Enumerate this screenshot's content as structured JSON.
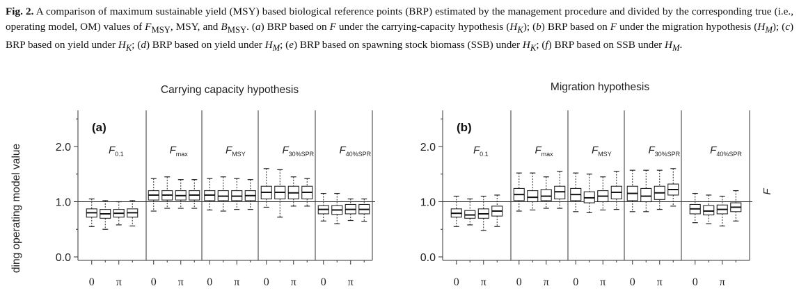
{
  "caption": {
    "label": "Fig. 2.",
    "html": "A comparison of maximum sustainable yield (MSY) based biological reference points (BRP) estimated by the management procedure and divided by the corresponding true (i.e., operating model, OM) values of <i>F</i><sub>MSY</sub>, MSY, and <i>B</i><sub>MSY</sub>. (<i>a</i>) BRP based on <i>F</i> under the carrying-capacity hypothesis (<i>H<sub>K</sub></i>); (<i>b</i>) BRP based on <i>F</i> under the migration hypothesis (<i>H<sub>M</sub></i>); (<i>c</i>) BRP based on yield under <i>H<sub>K</sub></i>; (<i>d</i>) BRP based on yield under <i>H<sub>M</sub></i>; (<i>e</i>) BRP based on spawning stock biomass (SSB) under <i>H<sub>K</sub></i>; (<i>f</i>) BRP based on SSB under <i>H<sub>M</sub></i>."
  },
  "y_axis_label": "ding operating model value",
  "right_label": "F",
  "chart_data": [
    {
      "type": "box",
      "title": "Carrying capacity hypothesis",
      "panel_label": "(a)",
      "ylim": [
        -0.05,
        2.55
      ],
      "yticks": [
        "0.0",
        "1.0",
        "2.0"
      ],
      "reference_line": 1.0,
      "groups": [
        {
          "label": "F",
          "sub": "0.1",
          "ticks": [
            "0",
            "π"
          ],
          "boxes": [
            [
              0.55,
              0.72,
              0.8,
              0.87,
              1.05
            ],
            [
              0.5,
              0.7,
              0.78,
              0.86,
              1.02
            ],
            [
              0.58,
              0.72,
              0.79,
              0.86,
              1.0
            ],
            [
              0.56,
              0.72,
              0.8,
              0.87,
              1.02
            ]
          ]
        },
        {
          "label": "F",
          "sub": "max",
          "ticks": [
            "0",
            "π"
          ],
          "boxes": [
            [
              0.83,
              1.03,
              1.12,
              1.2,
              1.42
            ],
            [
              0.88,
              1.03,
              1.12,
              1.2,
              1.45
            ],
            [
              0.88,
              1.03,
              1.11,
              1.2,
              1.4
            ],
            [
              0.88,
              1.03,
              1.12,
              1.2,
              1.4
            ]
          ]
        },
        {
          "label": "F",
          "sub": "MSY",
          "ticks": [
            "0",
            "π"
          ],
          "boxes": [
            [
              0.85,
              1.02,
              1.12,
              1.2,
              1.42
            ],
            [
              0.83,
              1.02,
              1.1,
              1.2,
              1.45
            ],
            [
              0.86,
              1.02,
              1.1,
              1.2,
              1.42
            ],
            [
              0.86,
              1.02,
              1.11,
              1.2,
              1.4
            ]
          ]
        },
        {
          "label": "F",
          "sub": "30%SPR",
          "ticks": [
            "0",
            "π"
          ],
          "boxes": [
            [
              0.9,
              1.05,
              1.17,
              1.28,
              1.6
            ],
            [
              0.72,
              1.05,
              1.17,
              1.28,
              1.58
            ],
            [
              0.92,
              1.05,
              1.16,
              1.28,
              1.45
            ],
            [
              0.92,
              1.05,
              1.17,
              1.28,
              1.42
            ]
          ]
        },
        {
          "label": "F",
          "sub": "40%SPR",
          "ticks": [
            "0",
            "π"
          ],
          "boxes": [
            [
              0.65,
              0.78,
              0.86,
              0.93,
              1.15
            ],
            [
              0.6,
              0.77,
              0.85,
              0.93,
              1.15
            ],
            [
              0.66,
              0.78,
              0.86,
              0.95,
              1.05
            ],
            [
              0.64,
              0.78,
              0.86,
              0.95,
              1.05
            ]
          ]
        }
      ]
    },
    {
      "type": "box",
      "title": "Migration hypothesis",
      "panel_label": "(b)",
      "ylim": [
        -0.05,
        2.55
      ],
      "yticks": [
        "0.0",
        "1.0",
        "2.0"
      ],
      "reference_line": 1.0,
      "groups": [
        {
          "label": "F",
          "sub": "0.1",
          "ticks": [
            "0",
            "π"
          ],
          "boxes": [
            [
              0.55,
              0.72,
              0.79,
              0.87,
              1.1
            ],
            [
              0.58,
              0.7,
              0.76,
              0.84,
              1.05
            ],
            [
              0.48,
              0.7,
              0.78,
              0.87,
              1.1
            ],
            [
              0.55,
              0.74,
              0.83,
              0.92,
              1.12
            ]
          ]
        },
        {
          "label": "F",
          "sub": "max",
          "ticks": [
            "0",
            "π"
          ],
          "boxes": [
            [
              0.83,
              1.02,
              1.13,
              1.24,
              1.52
            ],
            [
              0.85,
              1.0,
              1.08,
              1.2,
              1.52
            ],
            [
              0.88,
              1.02,
              1.1,
              1.22,
              1.45
            ],
            [
              0.88,
              1.05,
              1.18,
              1.28,
              1.55
            ]
          ]
        },
        {
          "label": "F",
          "sub": "MSY",
          "ticks": [
            "0",
            "π"
          ],
          "boxes": [
            [
              0.82,
              1.02,
              1.13,
              1.24,
              1.52
            ],
            [
              0.8,
              0.98,
              1.07,
              1.18,
              1.5
            ],
            [
              0.85,
              1.0,
              1.1,
              1.2,
              1.45
            ],
            [
              0.86,
              1.05,
              1.17,
              1.28,
              1.55
            ]
          ]
        },
        {
          "label": "F",
          "sub": "30%SPR",
          "ticks": [
            "0",
            "π"
          ],
          "boxes": [
            [
              0.82,
              1.02,
              1.15,
              1.28,
              1.57
            ],
            [
              0.82,
              1.0,
              1.1,
              1.24,
              1.57
            ],
            [
              0.86,
              1.04,
              1.16,
              1.28,
              1.57
            ],
            [
              0.92,
              1.12,
              1.22,
              1.32,
              1.6
            ]
          ]
        },
        {
          "label": "F",
          "sub": "40%SPR",
          "ticks": [
            "0",
            "π"
          ],
          "boxes": [
            [
              0.62,
              0.78,
              0.87,
              0.95,
              1.15
            ],
            [
              0.6,
              0.76,
              0.83,
              0.93,
              1.12
            ],
            [
              0.56,
              0.78,
              0.86,
              0.94,
              1.1
            ],
            [
              0.65,
              0.82,
              0.9,
              0.98,
              1.2
            ]
          ]
        }
      ]
    }
  ]
}
